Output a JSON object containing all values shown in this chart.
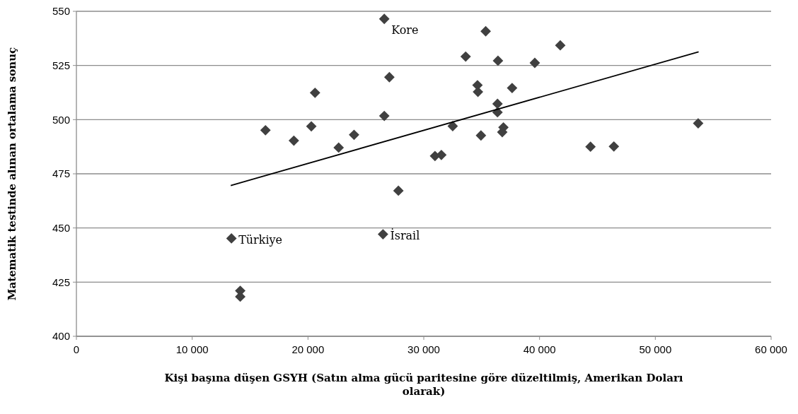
{
  "chart_data": {
    "type": "scatter",
    "xlabel": "Kişi başına düşen GSYH (Satın alma gücü paritesine göre düzeltilmiş, Amerikan Doları olarak)",
    "ylabel": "Matematik testinde alınan ortalama sonuç",
    "xlim": [
      0,
      60000
    ],
    "xticks": [
      0,
      {
        "value": 10000,
        "label": "10 000"
      },
      {
        "value": 20000,
        "label": "20 000"
      },
      {
        "value": 30000,
        "label": "30 000"
      },
      {
        "value": 40000,
        "label": "40 000"
      },
      {
        "value": 50000,
        "label": "50 000"
      },
      {
        "value": 60000,
        "label": "60 000"
      }
    ],
    "ylim": [
      400,
      550
    ],
    "yticks": [
      400,
      425,
      450,
      475,
      500,
      525,
      550
    ],
    "grid": "y",
    "series": [
      {
        "color": "#404040",
        "marker": "diamond",
        "x": [
          26590,
          35350,
          33620,
          36410,
          39590,
          41790,
          27030,
          20610,
          34640,
          34680,
          37630,
          26590,
          36370,
          36370,
          16330,
          18780,
          20290,
          23980,
          22650,
          30970,
          31520,
          32500,
          34940,
          36880,
          36780,
          44400,
          46420,
          53700,
          27810,
          13390,
          26480,
          14150,
          14150
        ],
        "values": [
          546.5,
          540.8,
          529.1,
          527.2,
          526.2,
          534.3,
          519.6,
          512.4,
          515.9,
          512.8,
          514.6,
          501.7,
          507.3,
          503.4,
          495.1,
          490.3,
          496.9,
          493.0,
          487.1,
          483.2,
          483.7,
          497.0,
          492.7,
          496.4,
          494.2,
          487.5,
          487.6,
          498.3,
          467.2,
          445.2,
          447.1,
          421.0,
          418.3
        ]
      },
      {
        "type": "line",
        "color": "#000000",
        "x": [
          13330,
          53740
        ],
        "values": [
          469.6,
          531.3
        ],
        "marker": "none",
        "line_style": "solid"
      }
    ],
    "annotations": [
      {
        "text": "Kore",
        "x": 26590,
        "y": 546.5
      },
      {
        "text": "Türkiye",
        "x": 13390,
        "y": 445.2
      },
      {
        "text": "İsrail",
        "x": 26480,
        "y": 447.1
      }
    ]
  }
}
